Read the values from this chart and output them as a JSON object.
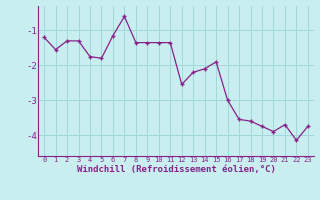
{
  "x": [
    0,
    1,
    2,
    3,
    4,
    5,
    6,
    7,
    8,
    9,
    10,
    11,
    12,
    13,
    14,
    15,
    16,
    17,
    18,
    19,
    20,
    21,
    22,
    23
  ],
  "y": [
    -1.2,
    -1.55,
    -1.3,
    -1.3,
    -1.75,
    -1.8,
    -1.15,
    -0.6,
    -1.35,
    -1.35,
    -1.35,
    -1.35,
    -2.55,
    -2.2,
    -2.1,
    -1.9,
    -3.0,
    -3.55,
    -3.6,
    -3.75,
    -3.9,
    -3.7,
    -4.15,
    -3.75
  ],
  "line_color": "#882288",
  "marker": "+",
  "bg_color": "#c8eef0",
  "grid_color": "#a0d8dc",
  "xlabel": "Windchill (Refroidissement éolien,°C)",
  "xlabel_color": "#882288",
  "tick_color": "#882288",
  "axis_color": "#882288",
  "ylim": [
    -4.6,
    -0.3
  ],
  "xlim": [
    -0.5,
    23.5
  ],
  "yticks": [
    -4,
    -3,
    -2,
    -1
  ],
  "xticks": [
    0,
    1,
    2,
    3,
    4,
    5,
    6,
    7,
    8,
    9,
    10,
    11,
    12,
    13,
    14,
    15,
    16,
    17,
    18,
    19,
    20,
    21,
    22,
    23
  ],
  "xtick_fontsize": 5.0,
  "ytick_fontsize": 6.5,
  "xlabel_fontsize": 6.5
}
